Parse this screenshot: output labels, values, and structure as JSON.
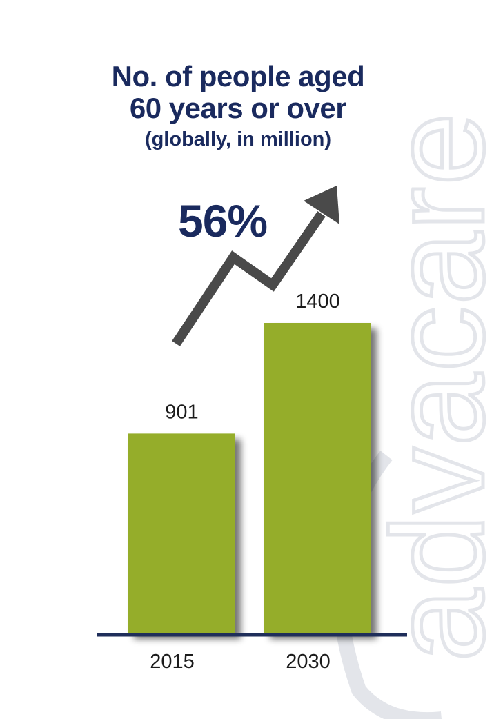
{
  "title_line1": "No. of people aged",
  "title_line2": "60 years or over",
  "subtitle": "(globally, in million)",
  "growth_label": "56%",
  "watermark_text": "advacare",
  "colors": {
    "bar": "#95ad2a",
    "title": "#1a2a5e",
    "baseline": "#1f2e5a",
    "arrow": "#4a4a4a",
    "watermark": "#e3e5ea"
  },
  "chart_data": {
    "type": "bar",
    "title": "No. of people aged 60 years or over",
    "subtitle": "(globally, in million)",
    "categories": [
      "2015",
      "2030"
    ],
    "values": [
      901,
      1400
    ],
    "data_labels": [
      "901",
      "1400"
    ],
    "xlabel": "",
    "ylabel": "",
    "grid": false,
    "annotation": "56%"
  }
}
